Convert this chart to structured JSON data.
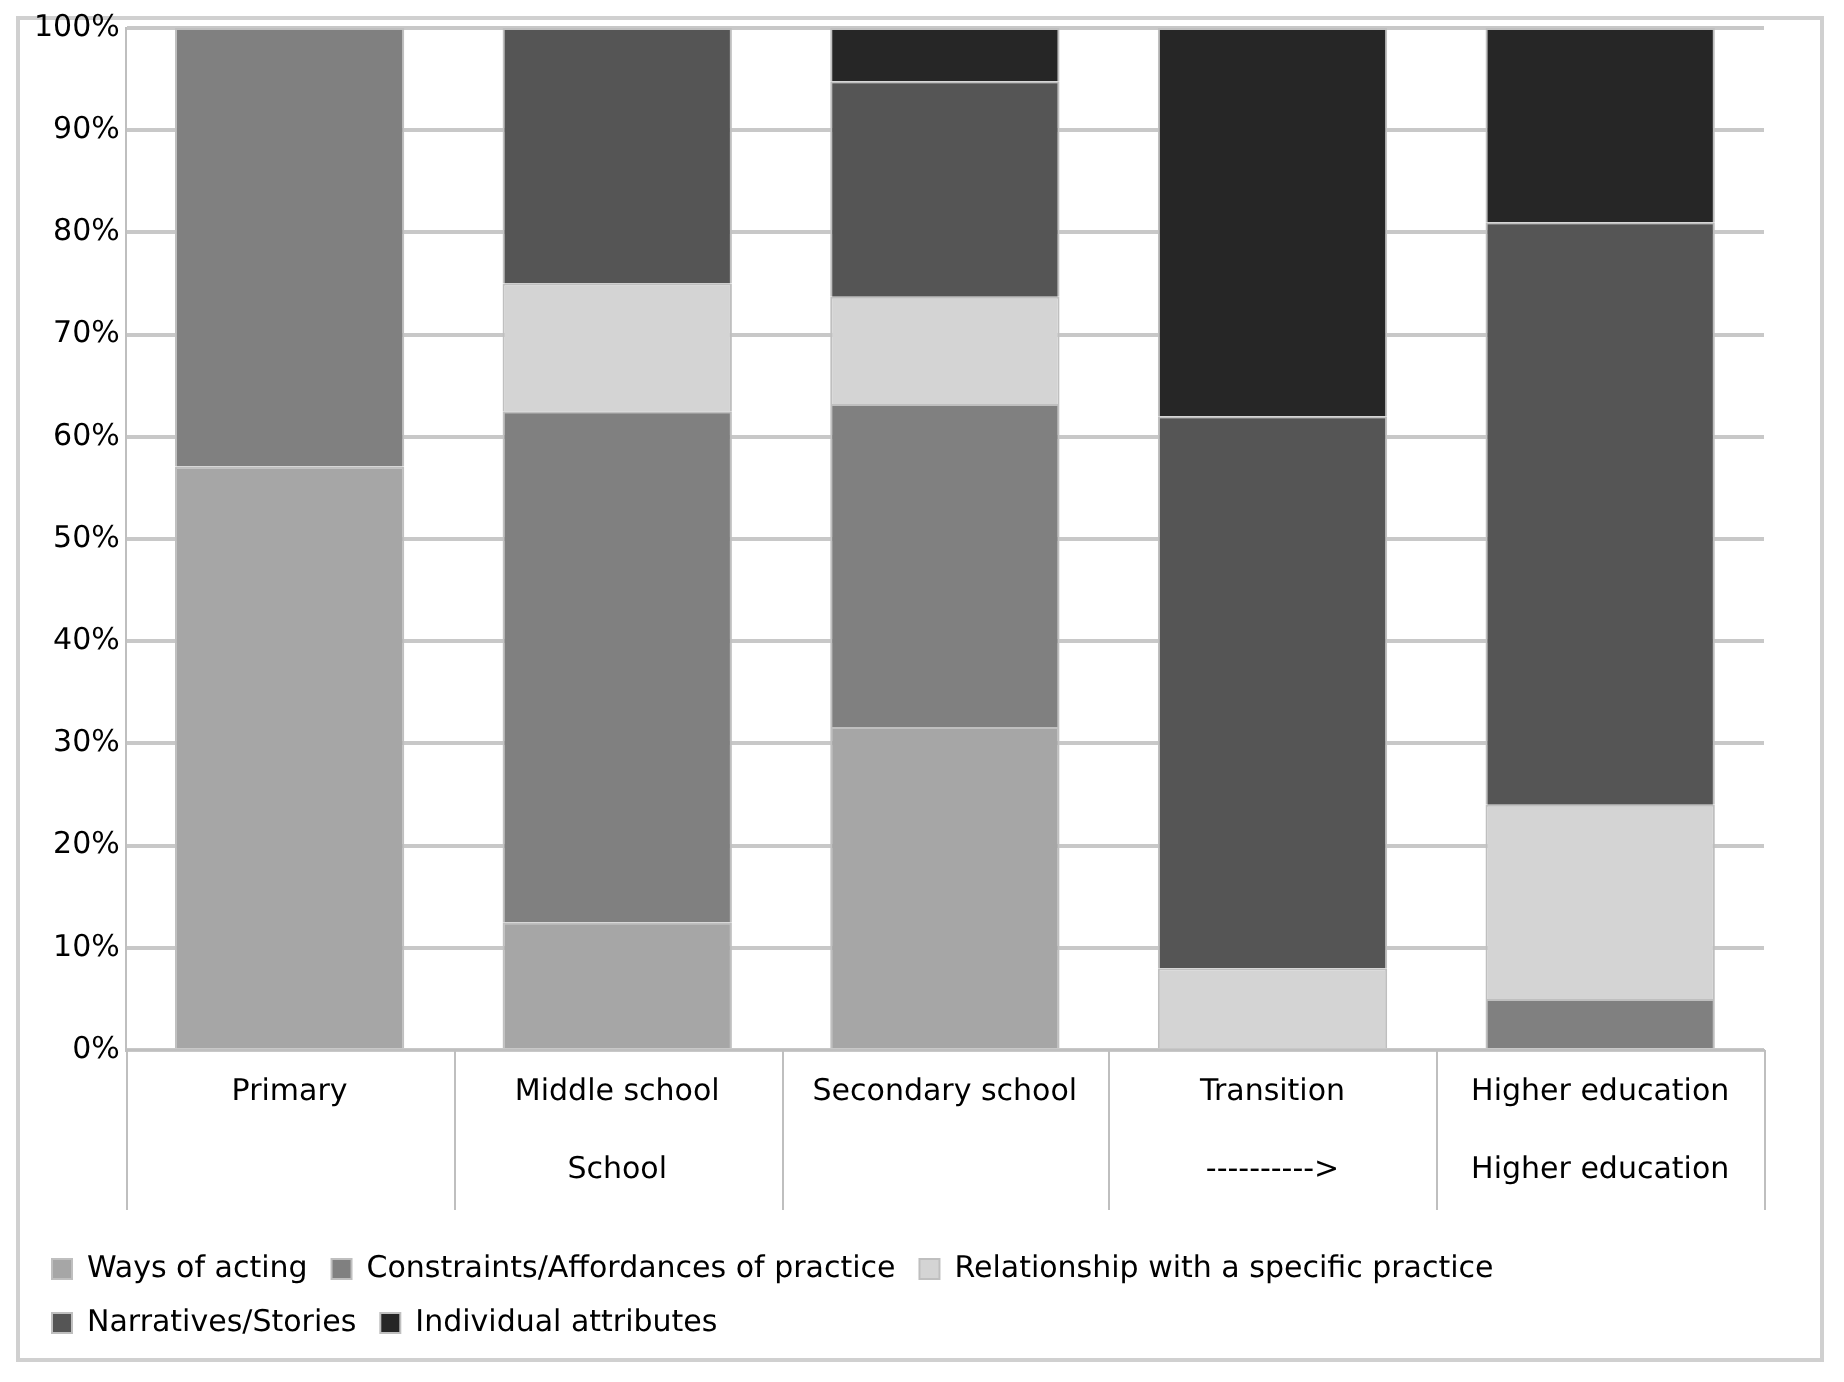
{
  "chart_data": {
    "type": "bar",
    "stacked": true,
    "categories": [
      "Primary",
      "Middle school",
      "Secondary school",
      "Transition",
      "Higher education"
    ],
    "series": [
      {
        "name": "Ways of acting",
        "color": "#a6a6a6",
        "values": [
          57.1,
          12.5,
          31.6,
          0,
          0
        ]
      },
      {
        "name": "Constraints/Affordances of practice",
        "color": "#808080",
        "values": [
          42.9,
          50,
          31.6,
          0,
          5
        ]
      },
      {
        "name": "Relationship with a specific practice",
        "color": "#d4d4d4",
        "values": [
          0,
          12.5,
          10.5,
          8,
          19
        ]
      },
      {
        "name": "Narratives/Stories",
        "color": "#555555",
        "values": [
          0,
          25,
          21.1,
          54,
          57
        ]
      },
      {
        "name": "Individual attributes",
        "color": "#262626",
        "values": [
          0,
          0,
          5.2,
          38,
          19
        ]
      }
    ],
    "ylim": [
      0,
      100
    ],
    "yticks": [
      {
        "value": 0,
        "label": "0%"
      },
      {
        "value": 10,
        "label": "10%"
      },
      {
        "value": 20,
        "label": "20%"
      },
      {
        "value": 30,
        "label": "30%"
      },
      {
        "value": 40,
        "label": "40%"
      },
      {
        "value": 50,
        "label": "50%"
      },
      {
        "value": 60,
        "label": "60%"
      },
      {
        "value": 70,
        "label": "70%"
      },
      {
        "value": 80,
        "label": "80%"
      },
      {
        "value": 90,
        "label": "90%"
      },
      {
        "value": 100,
        "label": "100%"
      }
    ],
    "grid": "y",
    "legend": "bottom",
    "annotations": [
      "School",
      "---------->",
      "Higher education"
    ]
  }
}
